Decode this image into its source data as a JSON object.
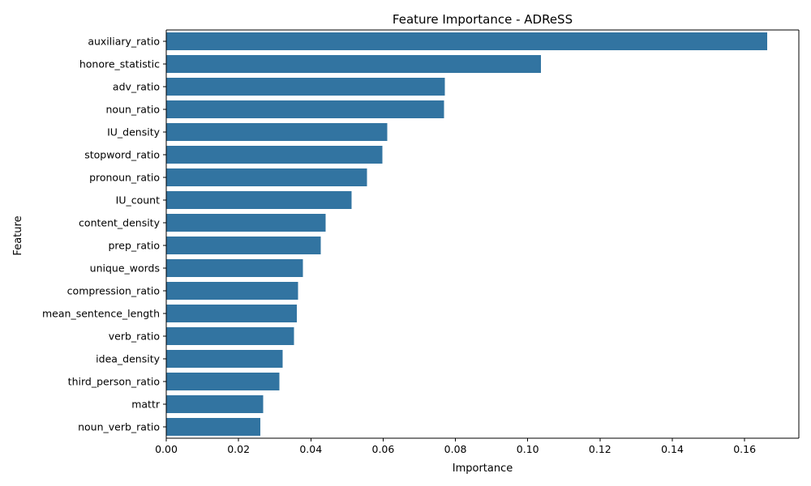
{
  "chart_data": {
    "type": "bar",
    "orientation": "horizontal",
    "title": "Feature Importance - ADReSS",
    "xlabel": "Importance",
    "ylabel": "Feature",
    "categories": [
      "auxiliary_ratio",
      "honore_statistic",
      "adv_ratio",
      "noun_ratio",
      "IU_density",
      "stopword_ratio",
      "pronoun_ratio",
      "IU_count",
      "content_density",
      "prep_ratio",
      "unique_words",
      "compression_ratio",
      "mean_sentence_length",
      "verb_ratio",
      "idea_density",
      "third_person_ratio",
      "mattr",
      "noun_verb_ratio"
    ],
    "values": [
      0.1663,
      0.1037,
      0.0771,
      0.0768,
      0.0611,
      0.0598,
      0.0555,
      0.0513,
      0.0441,
      0.0427,
      0.0378,
      0.0365,
      0.0361,
      0.0353,
      0.0322,
      0.0313,
      0.0268,
      0.026
    ],
    "xlim": [
      0,
      0.175
    ],
    "xticks": [
      0.0,
      0.02,
      0.04,
      0.06,
      0.08,
      0.1,
      0.12,
      0.14,
      0.16
    ],
    "xtick_labels": [
      "0.00",
      "0.02",
      "0.04",
      "0.06",
      "0.08",
      "0.10",
      "0.12",
      "0.14",
      "0.16"
    ],
    "grid": false,
    "legend": "none",
    "bar_color": "#3274a1"
  }
}
